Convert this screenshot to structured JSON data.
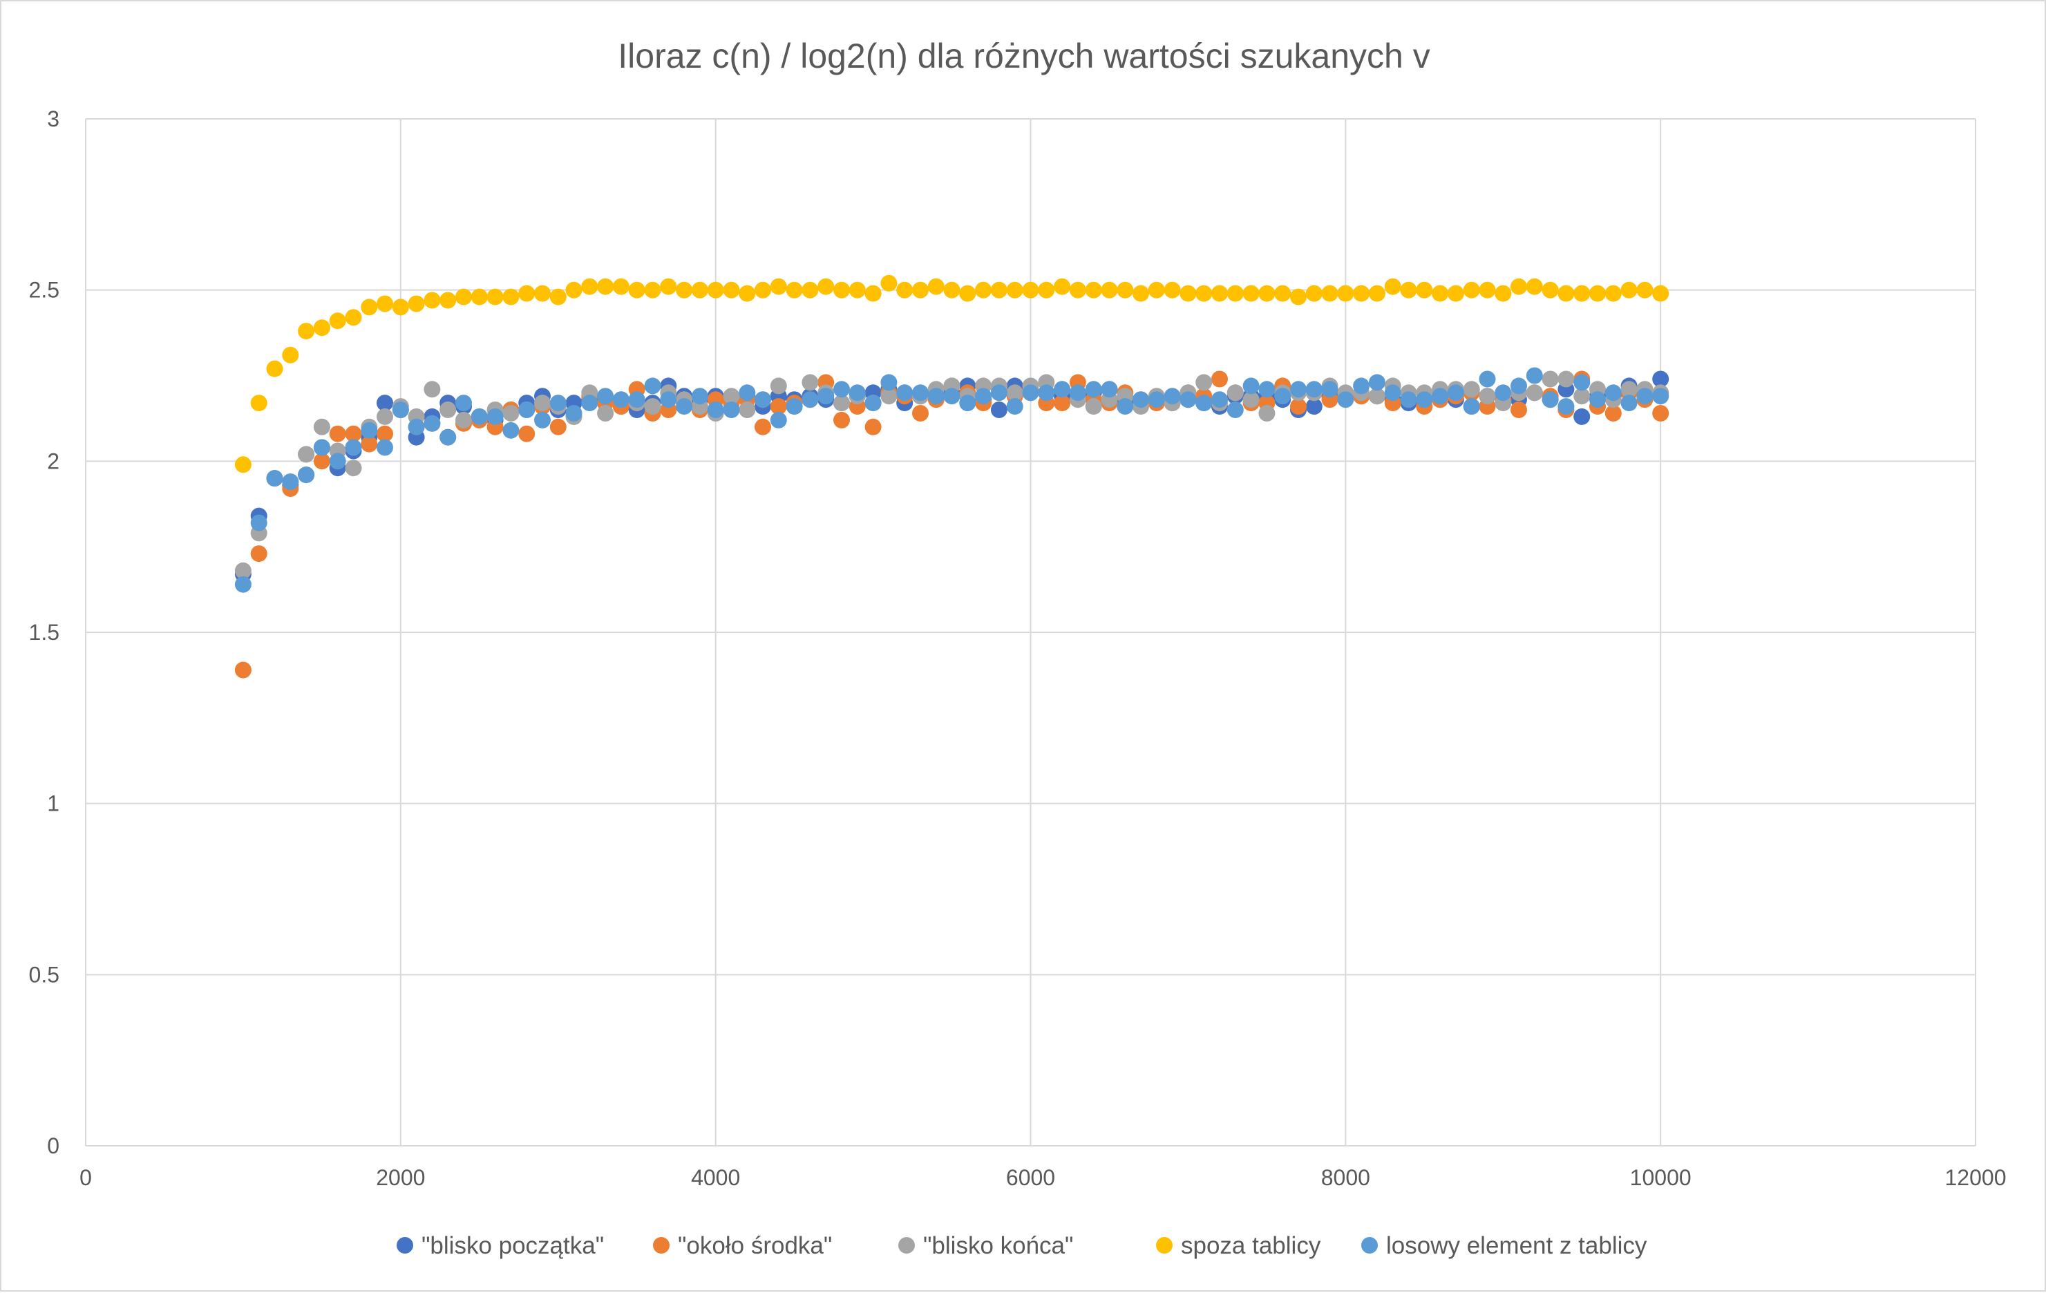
{
  "chart_data": {
    "type": "scatter",
    "title": "Iloraz c(n) / log2(n) dla różnych wartości szukanych v",
    "xlabel": "",
    "ylabel": "",
    "xlim": [
      0,
      12000
    ],
    "ylim": [
      0,
      3
    ],
    "x_ticks": [
      0,
      2000,
      4000,
      6000,
      8000,
      10000,
      12000
    ],
    "y_ticks": [
      0,
      0.5,
      1,
      1.5,
      2,
      2.5,
      3
    ],
    "x_tick_labels": [
      "0",
      "2000",
      "4000",
      "6000",
      "8000",
      "10000",
      "12000"
    ],
    "y_tick_labels": [
      "0",
      "0.5",
      "1",
      "1.5",
      "2",
      "2.5",
      "3"
    ],
    "grid": "major both axes",
    "legend_position": "bottom",
    "x": [
      1000,
      1100,
      1200,
      1300,
      1400,
      1500,
      1600,
      1700,
      1800,
      1900,
      2000,
      2100,
      2200,
      2300,
      2400,
      2500,
      2600,
      2700,
      2800,
      2900,
      3000,
      3100,
      3200,
      3300,
      3400,
      3500,
      3600,
      3700,
      3800,
      3900,
      4000,
      4100,
      4200,
      4300,
      4400,
      4500,
      4600,
      4700,
      4800,
      4900,
      5000,
      5100,
      5200,
      5300,
      5400,
      5500,
      5600,
      5700,
      5800,
      5900,
      6000,
      6100,
      6200,
      6300,
      6400,
      6500,
      6600,
      6700,
      6800,
      6900,
      7000,
      7100,
      7200,
      7300,
      7400,
      7500,
      7600,
      7700,
      7800,
      7900,
      8000,
      8100,
      8200,
      8300,
      8400,
      8500,
      8600,
      8700,
      8800,
      8900,
      9000,
      9100,
      9200,
      9300,
      9400,
      9500,
      9600,
      9700,
      9800,
      9900,
      10000
    ],
    "series": [
      {
        "name": "\"blisko początka\"",
        "color": "#4472c4",
        "values": [
          1.67,
          1.84,
          1.95,
          1.93,
          1.96,
          2.04,
          1.98,
          2.03,
          2.07,
          2.17,
          2.15,
          2.07,
          2.13,
          2.17,
          2.16,
          2.13,
          2.12,
          2.15,
          2.17,
          2.19,
          2.15,
          2.17,
          2.18,
          2.17,
          2.16,
          2.15,
          2.17,
          2.22,
          2.19,
          2.18,
          2.19,
          2.17,
          2.19,
          2.16,
          2.19,
          2.18,
          2.19,
          2.18,
          2.17,
          2.19,
          2.2,
          2.21,
          2.17,
          2.19,
          2.2,
          2.2,
          2.22,
          2.18,
          2.15,
          2.22,
          2.2,
          2.2,
          2.19,
          2.19,
          2.2,
          2.21,
          2.17,
          2.17,
          2.18,
          2.18,
          2.18,
          2.17,
          2.16,
          2.19,
          2.19,
          2.19,
          2.18,
          2.15,
          2.16,
          2.19,
          2.19,
          2.19,
          2.19,
          2.18,
          2.17,
          2.18,
          2.18,
          2.18,
          2.16,
          2.19,
          2.18,
          2.18,
          2.2,
          2.18,
          2.21,
          2.13,
          2.19,
          2.19,
          2.22,
          2.19,
          2.24
        ]
      },
      {
        "name": "\"około środka\"",
        "color": "#ed7d31",
        "values": [
          1.39,
          1.73,
          1.95,
          1.92,
          2.02,
          2.0,
          2.08,
          2.08,
          2.05,
          2.08,
          2.15,
          2.1,
          2.11,
          2.07,
          2.11,
          2.12,
          2.1,
          2.15,
          2.08,
          2.16,
          2.1,
          2.13,
          2.19,
          2.17,
          2.16,
          2.21,
          2.14,
          2.15,
          2.17,
          2.15,
          2.18,
          2.17,
          2.18,
          2.1,
          2.16,
          2.17,
          2.18,
          2.23,
          2.12,
          2.16,
          2.1,
          2.2,
          2.19,
          2.14,
          2.18,
          2.22,
          2.2,
          2.17,
          2.21,
          2.19,
          2.21,
          2.17,
          2.17,
          2.23,
          2.18,
          2.17,
          2.2,
          2.18,
          2.17,
          2.17,
          2.2,
          2.19,
          2.24,
          2.2,
          2.17,
          2.17,
          2.22,
          2.16,
          2.2,
          2.18,
          2.19,
          2.19,
          2.19,
          2.17,
          2.18,
          2.16,
          2.18,
          2.19,
          2.2,
          2.16,
          2.18,
          2.15,
          2.2,
          2.19,
          2.15,
          2.24,
          2.16,
          2.14,
          2.2,
          2.18,
          2.14
        ]
      },
      {
        "name": "\"blisko końca\"",
        "color": "#a5a5a5",
        "values": [
          1.68,
          1.79,
          1.95,
          1.94,
          2.02,
          2.1,
          2.03,
          1.98,
          2.1,
          2.13,
          2.16,
          2.13,
          2.21,
          2.15,
          2.12,
          2.13,
          2.15,
          2.14,
          2.15,
          2.17,
          2.16,
          2.13,
          2.2,
          2.14,
          2.18,
          2.17,
          2.16,
          2.2,
          2.18,
          2.16,
          2.14,
          2.19,
          2.15,
          2.18,
          2.22,
          2.16,
          2.23,
          2.2,
          2.17,
          2.19,
          2.17,
          2.19,
          2.2,
          2.19,
          2.21,
          2.22,
          2.19,
          2.22,
          2.22,
          2.2,
          2.22,
          2.23,
          2.21,
          2.18,
          2.16,
          2.18,
          2.19,
          2.16,
          2.19,
          2.17,
          2.2,
          2.23,
          2.17,
          2.2,
          2.18,
          2.14,
          2.2,
          2.2,
          2.2,
          2.22,
          2.2,
          2.2,
          2.19,
          2.22,
          2.2,
          2.2,
          2.21,
          2.21,
          2.21,
          2.19,
          2.17,
          2.2,
          2.2,
          2.24,
          2.24,
          2.19,
          2.21,
          2.18,
          2.21,
          2.21,
          2.2
        ]
      },
      {
        "name": "spoza tablicy",
        "color": "#ffc000",
        "values": [
          1.99,
          2.17,
          2.27,
          2.31,
          2.38,
          2.39,
          2.41,
          2.42,
          2.45,
          2.46,
          2.45,
          2.46,
          2.47,
          2.47,
          2.48,
          2.48,
          2.48,
          2.48,
          2.49,
          2.49,
          2.48,
          2.5,
          2.51,
          2.51,
          2.51,
          2.5,
          2.5,
          2.51,
          2.5,
          2.5,
          2.5,
          2.5,
          2.49,
          2.5,
          2.51,
          2.5,
          2.5,
          2.51,
          2.5,
          2.5,
          2.49,
          2.52,
          2.5,
          2.5,
          2.51,
          2.5,
          2.49,
          2.5,
          2.5,
          2.5,
          2.5,
          2.5,
          2.51,
          2.5,
          2.5,
          2.5,
          2.5,
          2.49,
          2.5,
          2.5,
          2.49,
          2.49,
          2.49,
          2.49,
          2.49,
          2.49,
          2.49,
          2.48,
          2.49,
          2.49,
          2.49,
          2.49,
          2.49,
          2.51,
          2.5,
          2.5,
          2.49,
          2.49,
          2.5,
          2.5,
          2.49,
          2.51,
          2.51,
          2.5,
          2.49,
          2.49,
          2.49,
          2.49,
          2.5,
          2.5,
          2.49
        ]
      },
      {
        "name": "losowy element z tablicy",
        "color": "#5b9bd5",
        "values": [
          1.64,
          1.82,
          1.95,
          1.94,
          1.96,
          2.04,
          2.0,
          2.04,
          2.09,
          2.04,
          2.15,
          2.1,
          2.11,
          2.07,
          2.17,
          2.13,
          2.13,
          2.09,
          2.15,
          2.12,
          2.17,
          2.14,
          2.17,
          2.19,
          2.18,
          2.18,
          2.22,
          2.18,
          2.16,
          2.19,
          2.15,
          2.15,
          2.2,
          2.18,
          2.12,
          2.16,
          2.18,
          2.19,
          2.21,
          2.2,
          2.17,
          2.23,
          2.2,
          2.2,
          2.19,
          2.19,
          2.17,
          2.19,
          2.2,
          2.16,
          2.2,
          2.2,
          2.21,
          2.2,
          2.21,
          2.21,
          2.16,
          2.18,
          2.18,
          2.19,
          2.18,
          2.17,
          2.18,
          2.15,
          2.22,
          2.21,
          2.19,
          2.21,
          2.21,
          2.21,
          2.18,
          2.22,
          2.23,
          2.2,
          2.18,
          2.18,
          2.19,
          2.2,
          2.16,
          2.24,
          2.2,
          2.22,
          2.25,
          2.18,
          2.16,
          2.23,
          2.18,
          2.2,
          2.17,
          2.19,
          2.19
        ]
      }
    ]
  }
}
